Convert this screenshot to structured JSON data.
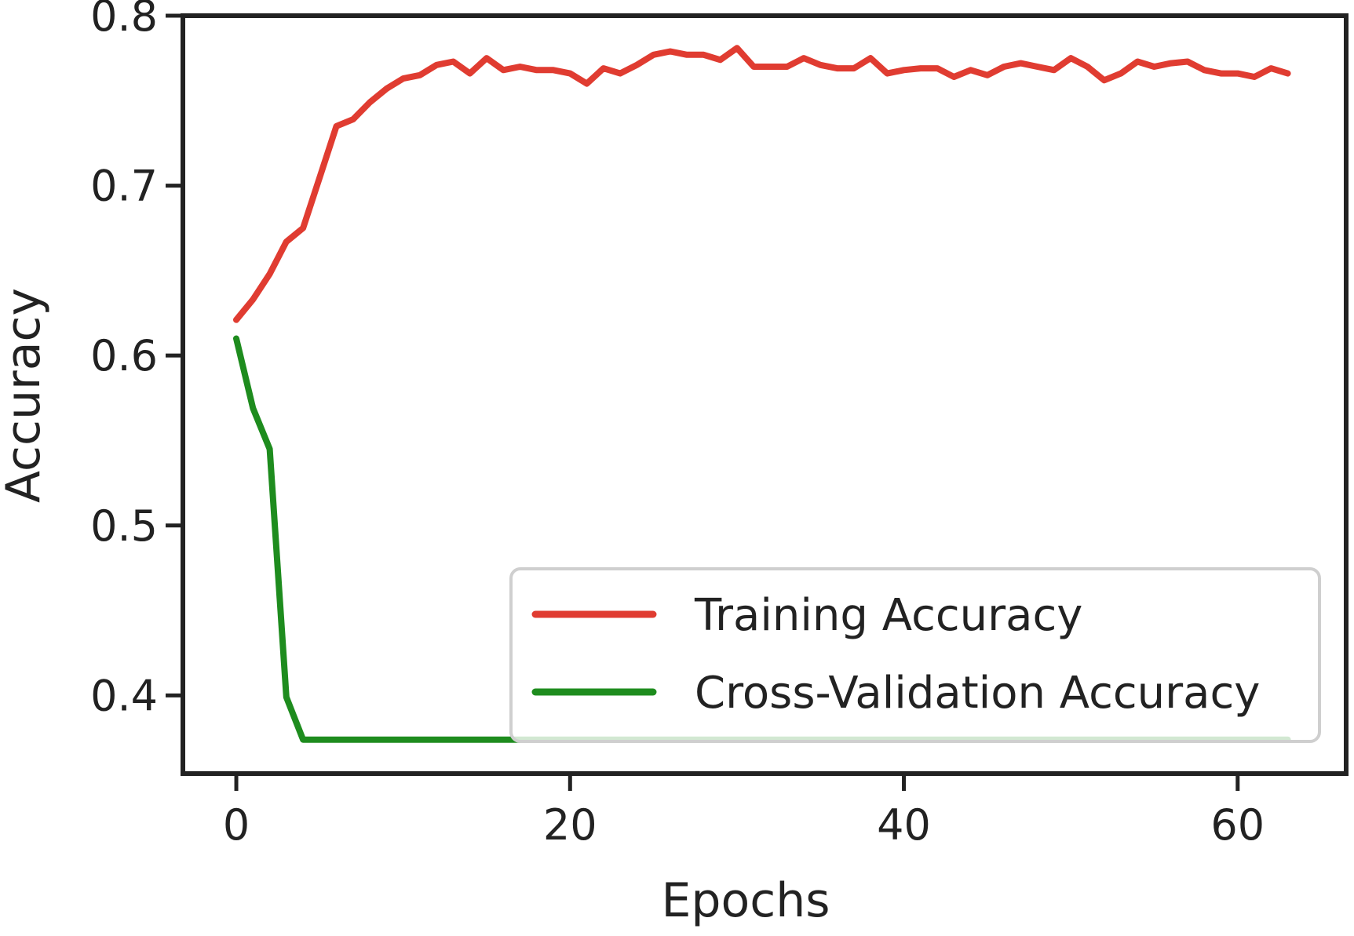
{
  "chart_data": {
    "type": "line",
    "title": "",
    "xlabel": "Epochs",
    "ylabel": "Accuracy",
    "xlim": [
      -3.2,
      66.5
    ],
    "ylim": [
      0.354,
      0.8
    ],
    "xticks": [
      0,
      20,
      40,
      60
    ],
    "yticks": [
      0.4,
      0.5,
      0.6,
      0.7,
      0.8
    ],
    "xtick_labels": [
      "0",
      "20",
      "40",
      "60"
    ],
    "ytick_labels": [
      "0.4",
      "0.5",
      "0.6",
      "0.7",
      "0.8"
    ],
    "grid": false,
    "legend_position": "lower-right",
    "x": [
      0,
      1,
      2,
      3,
      4,
      5,
      6,
      7,
      8,
      9,
      10,
      11,
      12,
      13,
      14,
      15,
      16,
      17,
      18,
      19,
      20,
      21,
      22,
      23,
      24,
      25,
      26,
      27,
      28,
      29,
      30,
      31,
      32,
      33,
      34,
      35,
      36,
      37,
      38,
      39,
      40,
      41,
      42,
      43,
      44,
      45,
      46,
      47,
      48,
      49,
      50,
      51,
      52,
      53,
      54,
      55,
      56,
      57,
      58,
      59,
      60,
      61,
      62,
      63
    ],
    "series": [
      {
        "name": "Training Accuracy",
        "color": "#e03c31",
        "values": [
          0.621,
          0.633,
          0.648,
          0.667,
          0.675,
          0.705,
          0.735,
          0.739,
          0.749,
          0.757,
          0.763,
          0.765,
          0.771,
          0.773,
          0.766,
          0.775,
          0.768,
          0.77,
          0.768,
          0.768,
          0.766,
          0.76,
          0.769,
          0.766,
          0.771,
          0.777,
          0.779,
          0.777,
          0.777,
          0.774,
          0.781,
          0.77,
          0.77,
          0.77,
          0.775,
          0.771,
          0.769,
          0.769,
          0.775,
          0.766,
          0.768,
          0.769,
          0.769,
          0.764,
          0.768,
          0.765,
          0.77,
          0.772,
          0.77,
          0.768,
          0.775,
          0.77,
          0.762,
          0.766,
          0.773,
          0.77,
          0.772,
          0.773,
          0.768,
          0.766,
          0.766,
          0.764,
          0.769,
          0.766
        ]
      },
      {
        "name": "Cross-Validation Accuracy",
        "color": "#1e8c1e",
        "values": [
          0.61,
          0.569,
          0.545,
          0.399,
          0.374,
          0.374,
          0.374,
          0.374,
          0.374,
          0.374,
          0.374,
          0.374,
          0.374,
          0.374,
          0.374,
          0.374,
          0.374,
          0.374,
          0.374,
          0.374,
          0.374,
          0.374,
          0.374,
          0.374,
          0.374,
          0.374,
          0.374,
          0.374,
          0.374,
          0.374,
          0.374,
          0.374,
          0.374,
          0.374,
          0.374,
          0.374,
          0.374,
          0.374,
          0.374,
          0.374,
          0.374,
          0.374,
          0.374,
          0.374,
          0.374,
          0.374,
          0.374,
          0.374,
          0.374,
          0.374,
          0.374,
          0.374,
          0.374,
          0.374,
          0.374,
          0.374,
          0.374,
          0.374,
          0.374,
          0.374,
          0.374,
          0.374,
          0.374,
          0.374
        ]
      }
    ]
  }
}
